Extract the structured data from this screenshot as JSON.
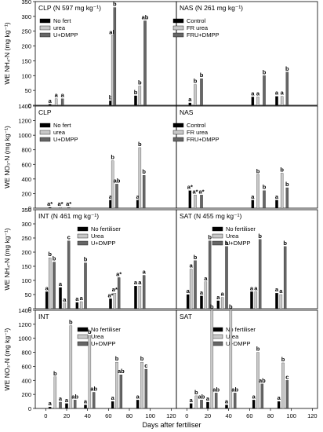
{
  "figure": {
    "xlabel": "Days after fertiliser",
    "x_ticks": [
      "0",
      "20",
      "40",
      "60",
      "80",
      "100",
      "120"
    ],
    "series_colors": [
      "#000000",
      "#c8c8c8",
      "#666666"
    ],
    "panels": [
      {
        "id": "clp-nh4",
        "label": "CLP (N 597 mg kg⁻¹)",
        "ylabel": "WE NH₄-N (mg kg⁻¹)",
        "legend": [
          "No fert",
          "urea",
          "U+DMPP"
        ]
      },
      {
        "id": "nas-nh4",
        "label": "NAS (N 261 mg kg⁻¹)",
        "ylabel": "",
        "legend": [
          "Control",
          "FR urea",
          "FRU+DMPP"
        ]
      },
      {
        "id": "clp-no3",
        "label": "CLP",
        "ylabel": "WE NO₃-N (mg kg⁻¹)",
        "legend": [
          "No fert",
          "urea",
          "U+DMPP"
        ]
      },
      {
        "id": "nas-no3",
        "label": "NAS",
        "ylabel": "",
        "legend": [
          "Control",
          "FR urea",
          "FRU+DMPP"
        ]
      },
      {
        "id": "int-nh4",
        "label": "INT (N 461 mg kg⁻¹)",
        "ylabel": "WE NH₄-N (mg kg⁻¹)",
        "legend": [
          "No fertiliser",
          "Urea",
          "U+DMPP"
        ]
      },
      {
        "id": "sat-nh4",
        "label": "SAT (N 455 mg kg⁻¹)",
        "ylabel": "",
        "legend": [
          "No fertiliser",
          "Urea",
          "U+DMPP"
        ]
      },
      {
        "id": "int-no3",
        "label": "INT",
        "ylabel": "WE NO₃-N (mg kg⁻¹)",
        "legend": [
          "No fertiliser",
          "Urea",
          "U+DMPP"
        ]
      },
      {
        "id": "sat-no3",
        "label": "SAT",
        "ylabel": "",
        "legend": [
          "No fertiliser",
          "Urea",
          "U+DMPP"
        ]
      }
    ]
  },
  "chart_data": [
    {
      "type": "bar",
      "panel": "clp-nh4",
      "xlim": [
        -10,
        125
      ],
      "ylim": [
        0,
        350
      ],
      "y_ticks": [
        "0",
        "50",
        "100",
        "150",
        "200",
        "250",
        "300",
        "350"
      ],
      "x": [
        4,
        62,
        90
      ],
      "series": [
        {
          "name": "No fert",
          "values": [
            3,
            15,
            32
          ]
        },
        {
          "name": "urea",
          "values": [
            22,
            235,
            65
          ]
        },
        {
          "name": "U+DMPP",
          "values": [
            22,
            330,
            285
          ]
        }
      ],
      "letters": [
        [
          "a",
          "b",
          "b"
        ],
        [
          "a",
          "ab",
          "b"
        ],
        [
          "a",
          "b",
          "ab"
        ]
      ],
      "x_positions_override": [
        [
          4,
          10,
          16
        ],
        [
          62,
          64,
          66
        ],
        [
          86,
          90,
          95
        ]
      ]
    },
    {
      "type": "bar",
      "panel": "nas-nh4",
      "xlim": [
        -10,
        125
      ],
      "ylim": [
        0,
        350
      ],
      "y_ticks": [],
      "series": [
        {
          "name": "Control",
          "values": [
            8,
            28,
            30
          ]
        },
        {
          "name": "FR urea",
          "values": [
            70,
            28,
            30
          ]
        },
        {
          "name": "FRU+DMPP",
          "values": [
            90,
            100,
            112
          ]
        }
      ],
      "letters": [
        [
          "a",
          "a",
          "a"
        ],
        [
          "b",
          "a",
          "a"
        ],
        [
          "b",
          "b",
          "b"
        ]
      ],
      "x_positions_override": [
        [
          3,
          8,
          14
        ],
        [
          63,
          68,
          74
        ],
        [
          86,
          91,
          96
        ]
      ]
    },
    {
      "type": "bar",
      "panel": "clp-no3",
      "xlim": [
        -10,
        125
      ],
      "ylim": [
        0,
        1400
      ],
      "y_ticks": [
        "0",
        "200",
        "400",
        "600",
        "800",
        "1000",
        "1200",
        "1400"
      ],
      "series": [
        {
          "name": "No fert",
          "values": [
            10,
            110,
            110
          ]
        },
        {
          "name": "urea",
          "values": [
            10,
            650,
            830
          ]
        },
        {
          "name": "U+DMPP",
          "values": [
            10,
            330,
            450
          ]
        }
      ],
      "letters": [
        [
          "a*",
          "a",
          "a"
        ],
        [
          "a*",
          "b",
          "b"
        ],
        [
          "a*",
          "ab",
          "b"
        ]
      ],
      "x_positions_override": [
        [
          4,
          14,
          22
        ],
        [
          62,
          64,
          68
        ],
        [
          88,
          90,
          94
        ]
      ]
    },
    {
      "type": "bar",
      "panel": "nas-no3",
      "xlim": [
        -10,
        125
      ],
      "ylim": [
        0,
        1400
      ],
      "y_ticks": [],
      "series": [
        {
          "name": "Control",
          "values": [
            240,
            110,
            110
          ]
        },
        {
          "name": "FR urea",
          "values": [
            180,
            460,
            480
          ]
        },
        {
          "name": "FRU+DMPP",
          "values": [
            180,
            240,
            280
          ]
        }
      ],
      "letters": [
        [
          "a*",
          "a",
          "a"
        ],
        [
          "a*",
          "b",
          "b"
        ],
        [
          "a*",
          "b",
          "b"
        ]
      ],
      "x_positions_override": [
        [
          3,
          8,
          14
        ],
        [
          63,
          68,
          74
        ],
        [
          86,
          91,
          96
        ]
      ]
    },
    {
      "type": "bar",
      "panel": "int-nh4",
      "xlim": [
        -10,
        125
      ],
      "ylim": [
        0,
        350
      ],
      "y_ticks": [
        "0",
        "50",
        "100",
        "150",
        "200",
        "250",
        "300",
        "350"
      ],
      "x": [
        4,
        17,
        32,
        63,
        86
      ],
      "series": [
        {
          "name": "No fertiliser",
          "values": [
            60,
            75,
            22,
            35,
            80
          ]
        },
        {
          "name": "Urea",
          "values": [
            180,
            20,
            25,
            55,
            80
          ]
        },
        {
          "name": "U+DMPP",
          "values": [
            165,
            240,
            162,
            110,
            118
          ]
        }
      ],
      "letters": [
        [
          "a",
          "a",
          "a",
          "a*",
          "a"
        ],
        [
          "b",
          "a",
          "a",
          "a*",
          "a"
        ],
        [
          "b",
          "c",
          "b",
          "a*",
          "a"
        ]
      ],
      "x_positions_override": [
        [
          1,
          4,
          8
        ],
        [
          14,
          18,
          22
        ],
        [
          30,
          34,
          38
        ],
        [
          62,
          66,
          70
        ],
        [
          86,
          90,
          94
        ]
      ]
    },
    {
      "type": "bar",
      "panel": "sat-nh4",
      "xlim": [
        -10,
        125
      ],
      "ylim": [
        0,
        350
      ],
      "y_ticks": [],
      "series": [
        {
          "name": "No fertiliser",
          "values": [
            50,
            45,
            28,
            60,
            55
          ]
        },
        {
          "name": "Urea",
          "values": [
            140,
            95,
            40,
            60,
            50
          ]
        },
        {
          "name": "U+DMPP",
          "values": [
            170,
            240,
            220,
            245,
            220
          ]
        }
      ],
      "letters": [
        [
          "a",
          "a",
          "a",
          "a",
          "a"
        ],
        [
          "a",
          "a",
          "a",
          "a",
          "a"
        ],
        [
          "b",
          "b",
          "b",
          "b",
          "b"
        ]
      ],
      "x_positions_override": [
        [
          1,
          4,
          8
        ],
        [
          14,
          18,
          22
        ],
        [
          30,
          34,
          38
        ],
        [
          62,
          66,
          70
        ],
        [
          86,
          90,
          94
        ]
      ]
    },
    {
      "type": "bar",
      "panel": "int-no3",
      "xlim": [
        -10,
        125
      ],
      "ylim": [
        0,
        1400
      ],
      "y_ticks": [
        "0",
        "200",
        "400",
        "600",
        "800",
        "1000",
        "1200",
        "1400"
      ],
      "series": [
        {
          "name": "No fertiliser",
          "values": [
            20,
            70,
            50,
            100,
            120
          ]
        },
        {
          "name": "Urea",
          "values": [
            450,
            1180,
            1040,
            660,
            660
          ]
        },
        {
          "name": "U+DMPP",
          "values": [
            90,
            120,
            230,
            480,
            560
          ]
        }
      ],
      "letters": [
        [
          "a",
          "a",
          "a",
          "a",
          "a"
        ],
        [
          "b",
          "b",
          "b",
          "b",
          "b"
        ],
        [
          "a",
          "ab",
          "ab",
          "ab",
          "c"
        ]
      ],
      "x_positions_override": [
        [
          4,
          9,
          14
        ],
        [
          20,
          24,
          28
        ],
        [
          38,
          42,
          46
        ],
        [
          64,
          68,
          72
        ],
        [
          88,
          92,
          96
        ]
      ]
    },
    {
      "type": "bar",
      "panel": "sat-no3",
      "xlim": [
        -10,
        125
      ],
      "ylim": [
        0,
        1400
      ],
      "y_ticks": [],
      "series": [
        {
          "name": "No fertiliser",
          "values": [
            70,
            90,
            50,
            120,
            100
          ]
        },
        {
          "name": "Urea",
          "values": [
            180,
            1400,
            1420,
            800,
            650
          ]
        },
        {
          "name": "U+DMPP",
          "values": [
            120,
            220,
            220,
            350,
            400
          ]
        }
      ],
      "letters": [
        [
          "a",
          "a",
          "a",
          "a",
          "a"
        ],
        [
          "b",
          "b",
          "b",
          "b",
          "b"
        ],
        [
          "ab",
          "ab",
          "ab",
          "ab",
          "c"
        ]
      ],
      "x_positions_override": [
        [
          4,
          9,
          14
        ],
        [
          20,
          24,
          28
        ],
        [
          38,
          42,
          46
        ],
        [
          64,
          68,
          72
        ],
        [
          88,
          92,
          96
        ]
      ]
    }
  ]
}
